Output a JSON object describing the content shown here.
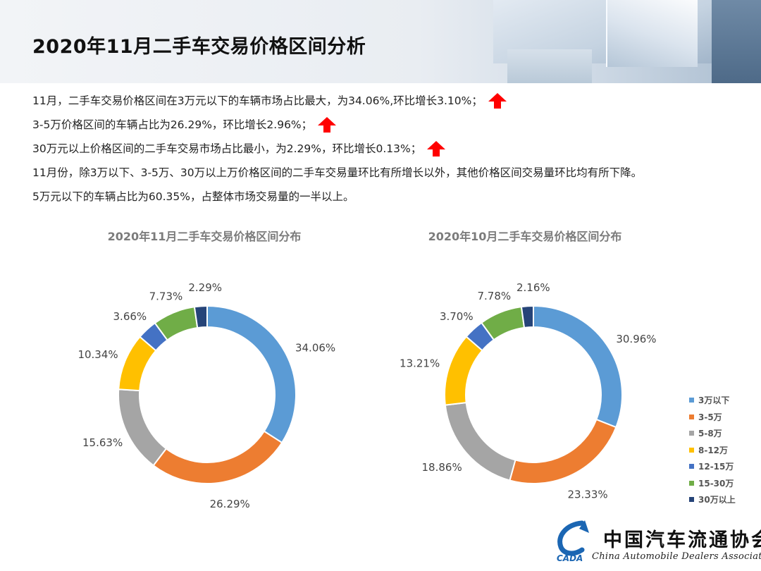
{
  "page": {
    "title": "2020年11月二手车交易价格区间分析"
  },
  "summary": {
    "lines": [
      {
        "text": "11月，二手车交易价格区间在3万元以下的车辆市场占比最大，为34.06%,环比增长3.10%；",
        "arrow": true
      },
      {
        "text": "3-5万价格区间的车辆占比为26.29%，环比增长2.96%；",
        "arrow": true
      },
      {
        "text": "30万元以上价格区间的二手车交易市场占比最小，为2.29%，环比增长0.13%；",
        "arrow": true
      },
      {
        "text": "11月份，除3万以下、3-5万、30万以上万价格区间的二手车交易量环比有所增长以外，其他价格区间交易量环比均有所下降。",
        "arrow": false
      },
      {
        "text": "5万元以下的车辆占比为60.35%，占整体市场交易量的一半以上。",
        "arrow": false
      }
    ],
    "arrow_color": "#ff0000"
  },
  "chart_data": [
    {
      "type": "pie",
      "title": "2020年11月二手车交易价格区间分布",
      "categories": [
        "3万以下",
        "3-5万",
        "5-8万",
        "8-12万",
        "12-15万",
        "15-30万",
        "30万以上"
      ],
      "values": [
        34.06,
        26.29,
        15.63,
        10.34,
        3.66,
        7.73,
        2.29
      ],
      "labels": [
        "34.06%",
        "26.29%",
        "15.63%",
        "10.34%",
        "3.66%",
        "7.73%",
        "2.29%"
      ],
      "donut": true,
      "legend": "none"
    },
    {
      "type": "pie",
      "title": "2020年10月二手车交易价格区间分布",
      "categories": [
        "3万以下",
        "3-5万",
        "5-8万",
        "8-12万",
        "12-15万",
        "15-30万",
        "30万以上"
      ],
      "values": [
        30.96,
        23.33,
        18.86,
        13.21,
        3.7,
        7.78,
        2.16
      ],
      "labels": [
        "30.96%",
        "23.33%",
        "18.86%",
        "13.21%",
        "3.70%",
        "7.78%",
        "2.16%"
      ],
      "donut": true,
      "legend": "right"
    }
  ],
  "series_colors": [
    "#5b9bd5",
    "#ed7d31",
    "#a5a5a5",
    "#ffc000",
    "#4472c4",
    "#70ad47",
    "#264478"
  ],
  "legend": {
    "items": [
      "3万以下",
      "3-5万",
      "5-8万",
      "8-12万",
      "12-15万",
      "15-30万",
      "30万以上"
    ]
  },
  "logo": {
    "name_cn": "中国汽车流通协会",
    "name_en": "China Automobile Dealers Association",
    "mark_text": "CADA"
  }
}
